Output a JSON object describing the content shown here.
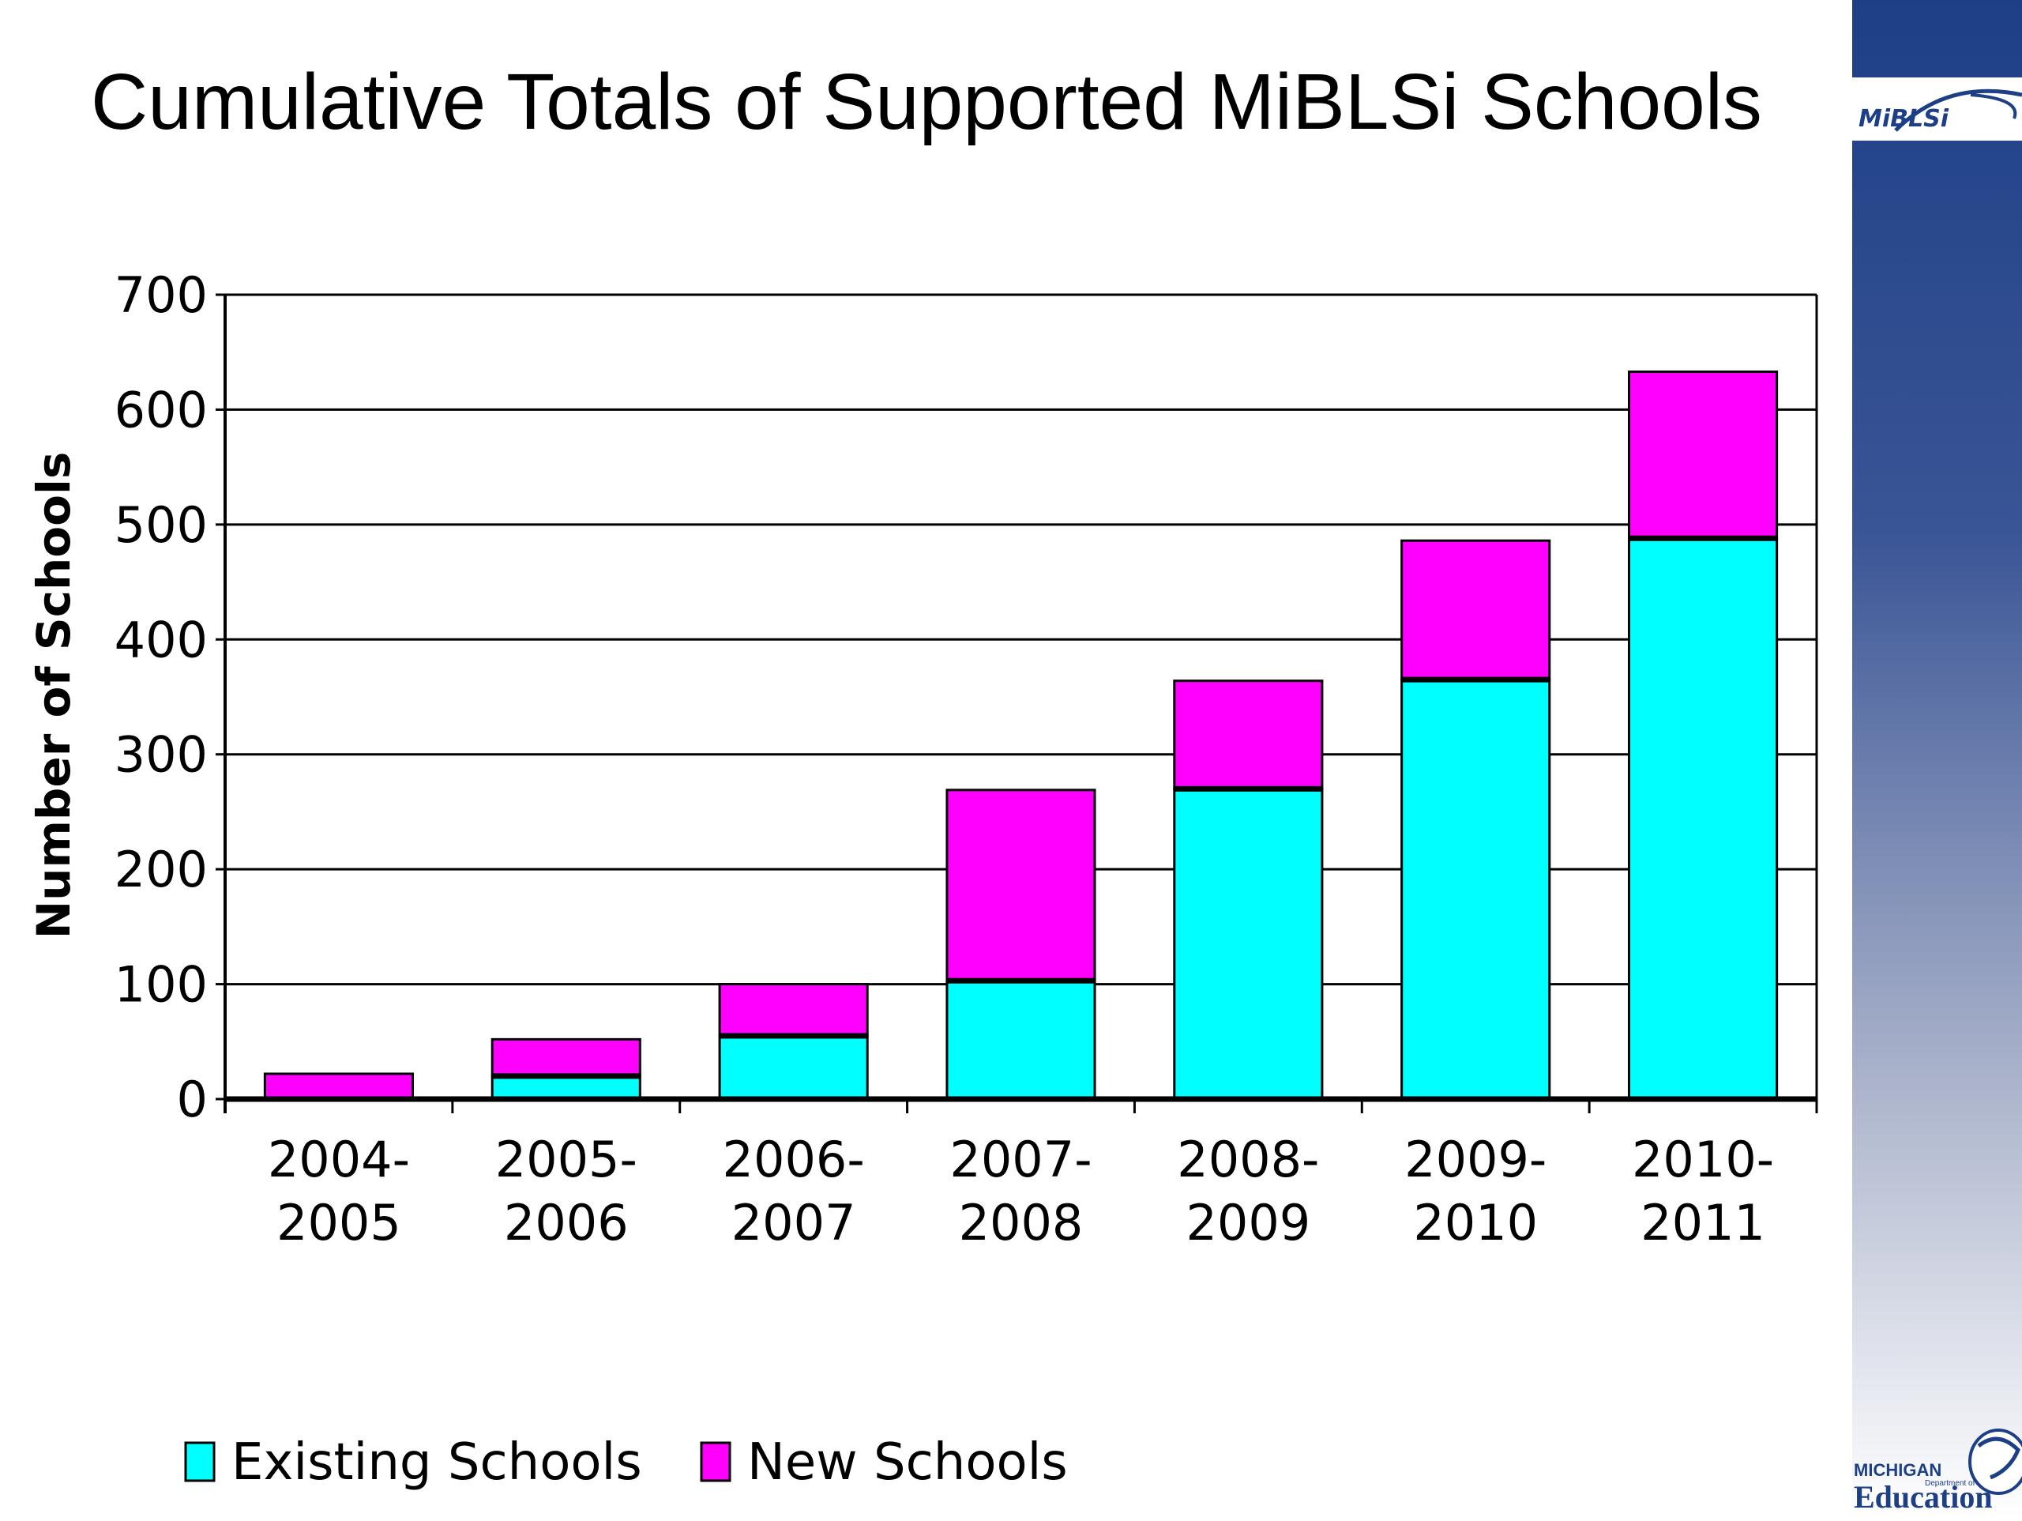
{
  "slide": {
    "title": "Cumulative Totals of Supported MiBLSi Schools",
    "logo_text": "MiBLSi",
    "footer_logo": {
      "line1": "MICHIGAN",
      "line2": "Department of",
      "line3": "Education"
    }
  },
  "colors": {
    "existing": "#00ffff",
    "new": "#ff00ff",
    "panel_top": "#1d3f86"
  },
  "chart_data": {
    "type": "bar",
    "stacked": true,
    "categories": [
      "2004-\n2005",
      "2005-\n2006",
      "2006-\n2007",
      "2007-\n2008",
      "2008-\n2009",
      "2009-\n2010",
      "2010-\n2011"
    ],
    "series": [
      {
        "name": "Existing Schools",
        "values": [
          0,
          20,
          55,
          103,
          270,
          365,
          488
        ]
      },
      {
        "name": "New Schools",
        "values": [
          22,
          32,
          45,
          166,
          94,
          121,
          145
        ]
      }
    ],
    "title": "",
    "xlabel": "",
    "ylabel": "Number of Schools",
    "ylim": [
      0,
      700
    ],
    "yticks": [
      0,
      100,
      200,
      300,
      400,
      500,
      600,
      700
    ],
    "grid": true,
    "legend": "bottom"
  }
}
